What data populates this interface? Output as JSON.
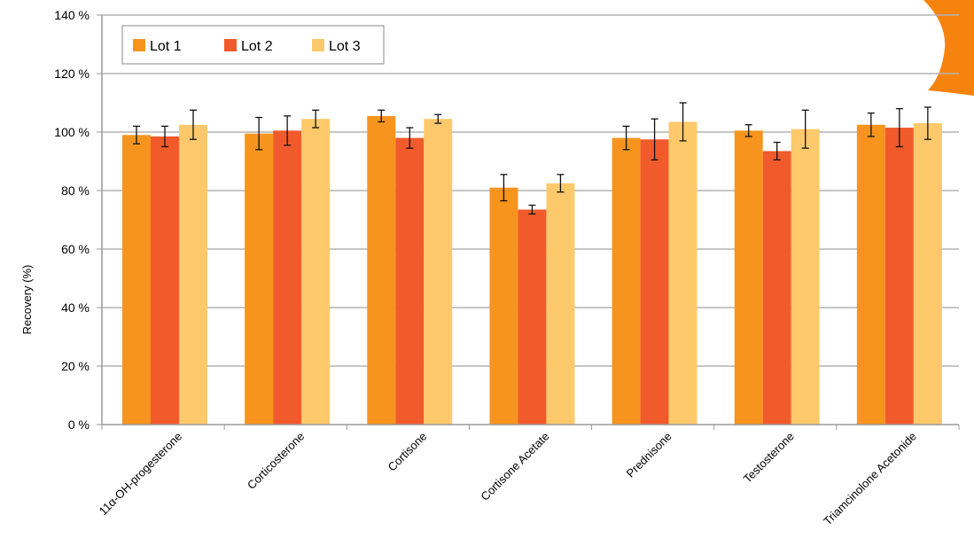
{
  "chart_data": {
    "type": "bar",
    "title": "",
    "xlabel": "",
    "ylabel": "Recovery (%)",
    "ylim": [
      0,
      140
    ],
    "yticks": [
      0,
      20,
      40,
      60,
      80,
      100,
      120,
      140
    ],
    "ytick_labels": [
      "0 %",
      "20 %",
      "40 %",
      "60 %",
      "80 %",
      "100 %",
      "120 %",
      "140 %"
    ],
    "grid": true,
    "legend_position": "top-left",
    "categories": [
      "11α-OH-progesterone",
      "Corticosterone",
      "Cortisone",
      "Cortisone Acetate",
      "Prednisone",
      "Testosterone",
      "Triamcinolone Acetonide"
    ],
    "series": [
      {
        "name": "Lot 1",
        "color": "#f7941d",
        "values": [
          99,
          99.5,
          105.5,
          81,
          98,
          100.5,
          102.5
        ],
        "errors": [
          3,
          5.5,
          2,
          4.5,
          4,
          2,
          4
        ]
      },
      {
        "name": "Lot 2",
        "color": "#f15a2b",
        "values": [
          98.5,
          100.5,
          98,
          73.5,
          97.5,
          93.5,
          101.5
        ],
        "errors": [
          3.5,
          5,
          3.5,
          1.5,
          7,
          3,
          6.5
        ]
      },
      {
        "name": "Lot 3",
        "color": "#fdc96b",
        "values": [
          102.5,
          104.5,
          104.5,
          82.5,
          103.5,
          101,
          103
        ],
        "errors": [
          5,
          3,
          1.5,
          3,
          6.5,
          6.5,
          5.5
        ]
      }
    ],
    "decoration_color": "#f7830f"
  }
}
